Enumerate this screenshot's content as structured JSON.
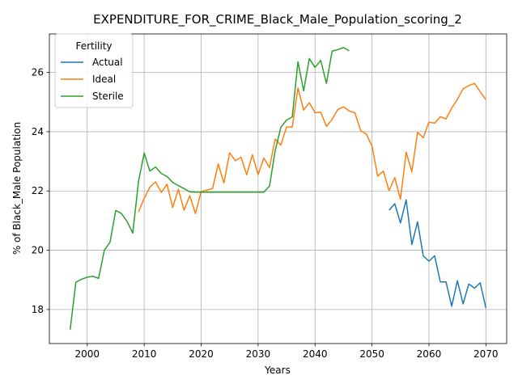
{
  "chart_data": {
    "type": "line",
    "title": "EXPENDITURE_FOR_CRIME_Black_Male_Population_scoring_2",
    "xlabel": "Years",
    "ylabel": "% of Black_Male Population",
    "xlim": [
      1993.35,
      2073.65
    ],
    "ylim": [
      16.85,
      27.3
    ],
    "xticks": [
      2000,
      2010,
      2020,
      2030,
      2040,
      2050,
      2060,
      2070
    ],
    "yticks": [
      18,
      20,
      22,
      24,
      26
    ],
    "grid": true,
    "legend": {
      "title": "Fertility",
      "placement": "top-left"
    },
    "series": [
      {
        "name": "Actual",
        "color": "#1f77b4",
        "x": [
          2053,
          2054,
          2055,
          2056,
          2057,
          2058,
          2059,
          2060,
          2061,
          2062,
          2063,
          2064,
          2065,
          2066,
          2067,
          2068,
          2069,
          2070
        ],
        "y": [
          21.35,
          21.57,
          20.92,
          21.7,
          20.19,
          20.96,
          19.81,
          19.63,
          19.81,
          18.93,
          18.93,
          18.11,
          18.97,
          18.19,
          18.86,
          18.72,
          18.9,
          18.05
        ]
      },
      {
        "name": "Ideal",
        "color": "#ff7f0e",
        "x": [
          2009,
          2010,
          2011,
          2012,
          2013,
          2014,
          2015,
          2016,
          2017,
          2018,
          2019,
          2020,
          2021,
          2022,
          2023,
          2024,
          2025,
          2026,
          2027,
          2028,
          2029,
          2030,
          2031,
          2032,
          2033,
          2034,
          2035,
          2036,
          2037,
          2038,
          2039,
          2040,
          2041,
          2042,
          2043,
          2044,
          2045,
          2046,
          2047,
          2048,
          2049,
          2050,
          2051,
          2052,
          2053,
          2054,
          2055,
          2056,
          2057,
          2058,
          2059,
          2060,
          2061,
          2062,
          2063,
          2064,
          2065,
          2066,
          2067,
          2068,
          2069,
          2070
        ],
        "y": [
          21.29,
          21.75,
          22.13,
          22.31,
          21.95,
          22.23,
          21.44,
          22.06,
          21.35,
          21.84,
          21.24,
          21.98,
          22.03,
          22.08,
          22.91,
          22.27,
          23.29,
          23.02,
          23.14,
          22.55,
          23.22,
          22.55,
          23.11,
          22.79,
          23.75,
          23.55,
          24.16,
          24.16,
          25.48,
          24.73,
          24.98,
          24.64,
          24.66,
          24.18,
          24.42,
          24.75,
          24.84,
          24.7,
          24.64,
          24.04,
          23.92,
          23.52,
          22.5,
          22.67,
          22.01,
          22.45,
          21.72,
          23.31,
          22.65,
          23.98,
          23.8,
          24.32,
          24.29,
          24.51,
          24.43,
          24.8,
          25.09,
          25.45,
          25.56,
          25.63,
          25.35,
          25.08
        ]
      },
      {
        "name": "Sterile",
        "color": "#2ca02c",
        "x": [
          1997,
          1998,
          1999,
          2000,
          2001,
          2002,
          2003,
          2004,
          2005,
          2006,
          2007,
          2008,
          2009,
          2010,
          2011,
          2012,
          2013,
          2014,
          2015,
          2016,
          2017,
          2018,
          2019,
          2020,
          2021,
          2022,
          2023,
          2024,
          2025,
          2026,
          2027,
          2028,
          2029,
          2030,
          2031,
          2032,
          2033,
          2034,
          2035,
          2036,
          2037,
          2038,
          2039,
          2040,
          2041,
          2042,
          2043,
          2044,
          2045,
          2046
        ],
        "y": [
          17.32,
          18.92,
          19.02,
          19.09,
          19.12,
          19.05,
          20.0,
          20.27,
          21.34,
          21.24,
          20.97,
          20.58,
          22.32,
          23.28,
          22.67,
          22.81,
          22.59,
          22.49,
          22.29,
          22.18,
          22.08,
          21.97,
          21.96,
          21.96,
          21.96,
          21.96,
          21.96,
          21.96,
          21.96,
          21.96,
          21.96,
          21.96,
          21.96,
          21.96,
          21.96,
          22.16,
          23.36,
          24.15,
          24.39,
          24.5,
          26.36,
          25.38,
          26.47,
          26.17,
          26.41,
          25.63,
          26.72,
          26.77,
          26.84,
          26.73
        ]
      }
    ]
  }
}
